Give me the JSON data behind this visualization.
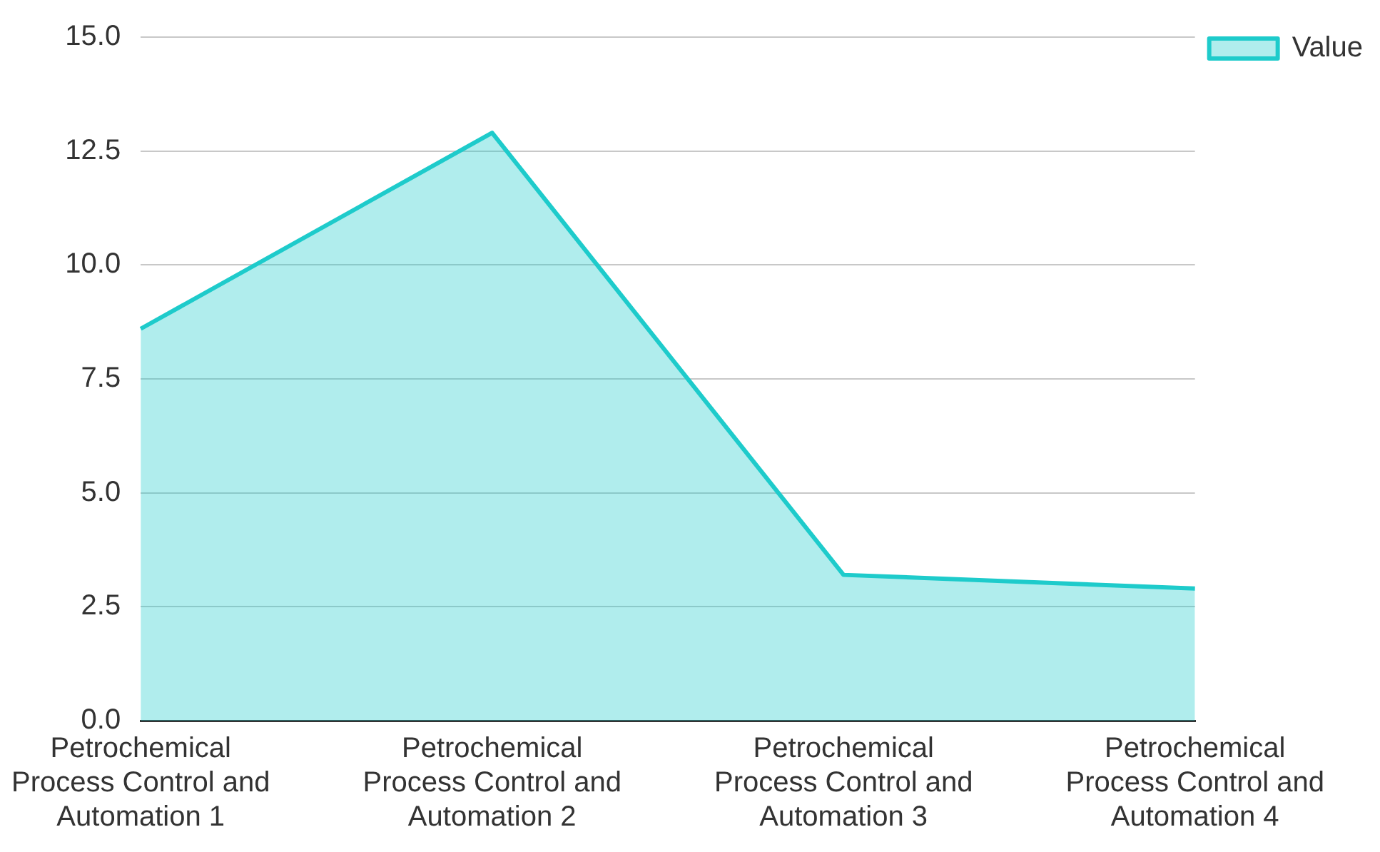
{
  "chart_data": {
    "type": "area",
    "categories": [
      "Petrochemical Process Control and Automation 1",
      "Petrochemical Process Control and Automation 2",
      "Petrochemical Process Control and Automation 3",
      "Petrochemical Process Control and Automation 4"
    ],
    "series": [
      {
        "name": "Value",
        "color": "#1ecbcb",
        "values": [
          8.6,
          12.9,
          3.2,
          2.9
        ]
      }
    ],
    "ylim": [
      0,
      15
    ],
    "yticks": [
      {
        "value": 0,
        "label": "0.0"
      },
      {
        "value": 2.5,
        "label": "2.5"
      },
      {
        "value": 5,
        "label": "5.0"
      },
      {
        "value": 7.5,
        "label": "7.5"
      },
      {
        "value": 10,
        "label": "10.0"
      },
      {
        "value": 12.5,
        "label": "12.5"
      },
      {
        "value": 15,
        "label": "15.0"
      }
    ],
    "grid": "y",
    "legend": "top right",
    "marker": "none"
  }
}
